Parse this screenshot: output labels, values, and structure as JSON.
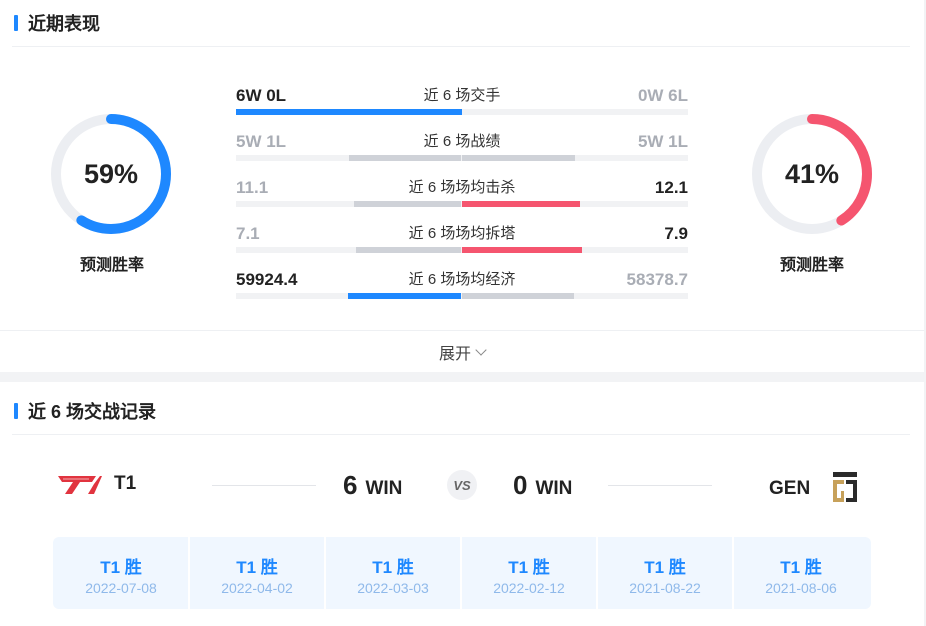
{
  "recent": {
    "title": "近期表现",
    "left_pct": "59%",
    "left_pct_value": 59,
    "left_label": "预测胜率",
    "right_pct": "41%",
    "right_pct_value": 41,
    "right_label": "预测胜率",
    "rows": [
      {
        "left": "6W 0L",
        "label": "近 6 场交手",
        "right": "0W 6L",
        "left_fraction": 1.0,
        "right_fraction": 0.0
      },
      {
        "left": "5W 1L",
        "label": "近 6 场战绩",
        "right": "5W 1L",
        "left_fraction": 0.5,
        "right_fraction": 0.5
      },
      {
        "left": "11.1",
        "label": "近 6 场场均击杀",
        "right": "12.1",
        "left_fraction": 0.48,
        "right_fraction": 0.52
      },
      {
        "left": "7.1",
        "label": "近 6 场场均拆塔",
        "right": "7.9",
        "left_fraction": 0.47,
        "right_fraction": 0.53
      },
      {
        "left": "59924.4",
        "label": "近 6 场场均经济",
        "right": "58378.7",
        "left_fraction": 0.506,
        "right_fraction": 0.494
      }
    ],
    "expand_label": "展开"
  },
  "h2h": {
    "title": "近 6 场交战记录",
    "team_left": "T1",
    "team_right": "GEN",
    "left_wins": "6",
    "right_wins": "0",
    "win_label": "WIN",
    "vs_label": "VS",
    "matches": [
      {
        "result": "T1 胜",
        "date": "2022-07-08"
      },
      {
        "result": "T1 胜",
        "date": "2022-04-02"
      },
      {
        "result": "T1 胜",
        "date": "2022-03-03"
      },
      {
        "result": "T1 胜",
        "date": "2022-02-12"
      },
      {
        "result": "T1 胜",
        "date": "2021-08-22"
      },
      {
        "result": "T1 胜",
        "date": "2021-08-06"
      }
    ]
  },
  "colors": {
    "blue": "#1e88ff",
    "red": "#f5556f",
    "grey": "#cfd2d8",
    "track": "#eceef2"
  },
  "icons": {
    "t1_logo": "t1-logo-icon",
    "gen_logo": "gen-g-logo-icon",
    "expand": "chevron-down-icon"
  }
}
